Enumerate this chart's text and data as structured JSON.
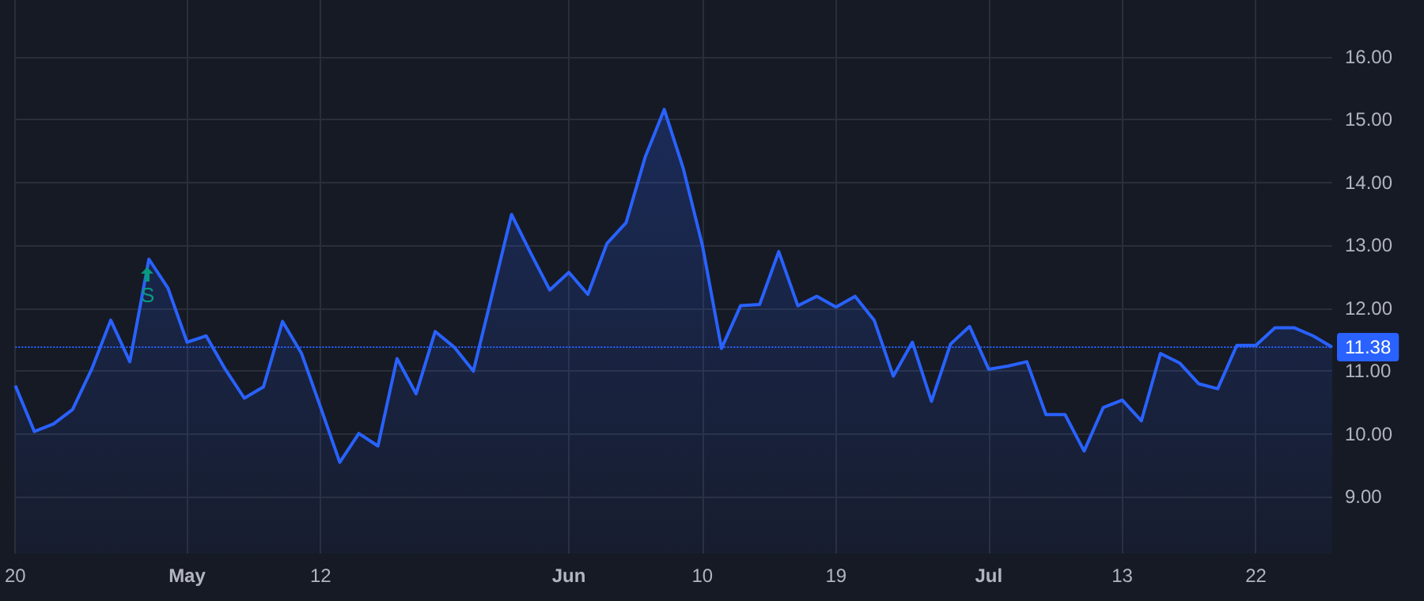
{
  "chart_data": {
    "type": "area",
    "categories": [
      "20",
      null,
      null,
      null,
      null,
      null,
      null,
      null,
      null,
      "May",
      null,
      null,
      null,
      null,
      null,
      null,
      "12",
      null,
      null,
      null,
      null,
      null,
      null,
      null,
      null,
      null,
      null,
      null,
      null,
      "Jun",
      null,
      null,
      null,
      null,
      null,
      null,
      "10",
      null,
      null,
      null,
      null,
      null,
      null,
      "19",
      null,
      null,
      null,
      null,
      null,
      null,
      null,
      "Jul",
      null,
      null,
      null,
      null,
      null,
      null,
      "13",
      null,
      null,
      null,
      null,
      null,
      null,
      "22",
      null,
      null,
      null,
      null
    ],
    "series": [
      {
        "color": "#2962ff",
        "values": [
          10.77,
          10.04,
          10.16,
          10.39,
          11.03,
          11.81,
          11.15,
          12.78,
          12.32,
          11.46,
          11.56,
          11.03,
          10.57,
          10.75,
          11.79,
          11.28,
          10.42,
          9.55,
          10.01,
          9.81,
          11.2,
          10.64,
          11.63,
          11.38,
          11.0,
          12.24,
          13.49,
          12.88,
          12.29,
          12.57,
          12.22,
          13.03,
          13.36,
          14.4,
          15.16,
          14.22,
          13.0,
          11.36,
          12.04,
          12.06,
          12.9,
          12.04,
          12.19,
          12.02,
          12.19,
          11.81,
          10.92,
          11.46,
          10.52,
          11.43,
          11.71,
          11.03,
          11.08,
          11.15,
          10.31,
          10.31,
          9.73,
          10.42,
          10.54,
          10.21,
          11.28,
          11.13,
          10.8,
          10.72,
          11.41,
          11.41,
          11.69,
          11.69,
          11.56,
          11.38
        ]
      }
    ],
    "ylim": [
      8.1,
      16.9
    ],
    "yticks": [
      {
        "value": 9,
        "label": "9.00"
      },
      {
        "value": 10,
        "label": "10.00"
      },
      {
        "value": 11,
        "label": "11.00"
      },
      {
        "value": 12,
        "label": "12.00"
      },
      {
        "value": 13,
        "label": "13.00"
      },
      {
        "value": 14,
        "label": "14.00"
      },
      {
        "value": 15,
        "label": "15.00"
      },
      {
        "value": 16,
        "label": "16.00"
      }
    ],
    "ref_lines": [
      {
        "axis": "y",
        "value": 11.38,
        "label": "11.38",
        "color": "#2962ff",
        "line_style": "dotted"
      }
    ],
    "annotations": [
      {
        "text": "S",
        "y": 12.2
      }
    ],
    "grid": true,
    "marker": "none",
    "line_style": "solid"
  }
}
